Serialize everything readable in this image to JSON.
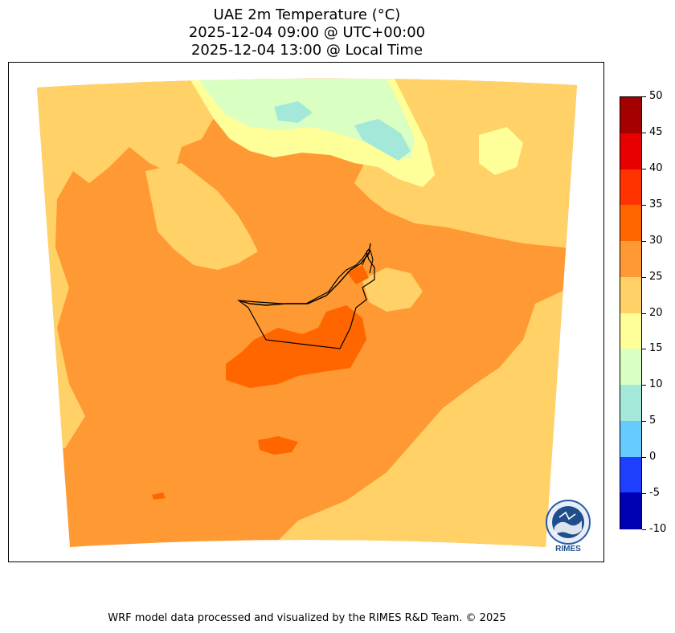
{
  "title": {
    "line1": "UAE 2m Temperature (°C)",
    "line2": "2025-12-04 09:00 @ UTC+00:00",
    "line3": "2025-12-04 13:00 @ Local Time"
  },
  "map": {
    "variable": "2m temperature",
    "unit": "°C",
    "dominant_ranges": [
      "20-25",
      "25-30"
    ],
    "hot_spot_range": "30-35",
    "cool_region_ranges": [
      "5-10",
      "10-15",
      "15-20"
    ]
  },
  "colorbar": {
    "labels": [
      "50",
      "45",
      "40",
      "35",
      "30",
      "25",
      "20",
      "15",
      "10",
      "5",
      "0",
      "-5",
      "-10"
    ],
    "colors": [
      "#a50000",
      "#e60000",
      "#ff3300",
      "#ff6600",
      "#ff9933",
      "#ffd166",
      "#ffff99",
      "#d9ffc2",
      "#a3e8d9",
      "#66ccff",
      "#1f3fff",
      "#0000b3"
    ]
  },
  "logo": {
    "text": "RIMES",
    "icon": "rimes-logo"
  },
  "footer": {
    "credit": "WRF model data processed and visualized by the RIMES R&D Team. © 2025"
  }
}
